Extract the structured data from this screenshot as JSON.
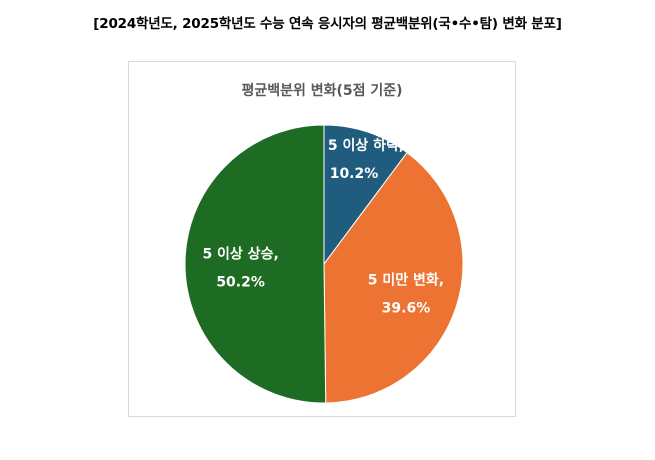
{
  "heading": "[2024학년도, 2025학년도 수능 연속 응시자의 평균백분위(국•수•탐) 변화 분포]",
  "chart_data": {
    "type": "pie",
    "title": "평균백분위 변화(5점 기준)",
    "slices": [
      {
        "name": "5 이상 하락",
        "value": 10.2,
        "value_label": "10.2%",
        "color": "#1f5c7e"
      },
      {
        "name": "5 미만 변화",
        "value": 39.6,
        "value_label": "39.6%",
        "color": "#ed7332"
      },
      {
        "name": "5 이상 상승",
        "value": 50.2,
        "value_label": "50.2%",
        "color": "#1e6b23"
      }
    ],
    "start": "12 o'clock",
    "direction": "clockwise",
    "legend": "none",
    "data_labels": "category name and value inside slices"
  }
}
